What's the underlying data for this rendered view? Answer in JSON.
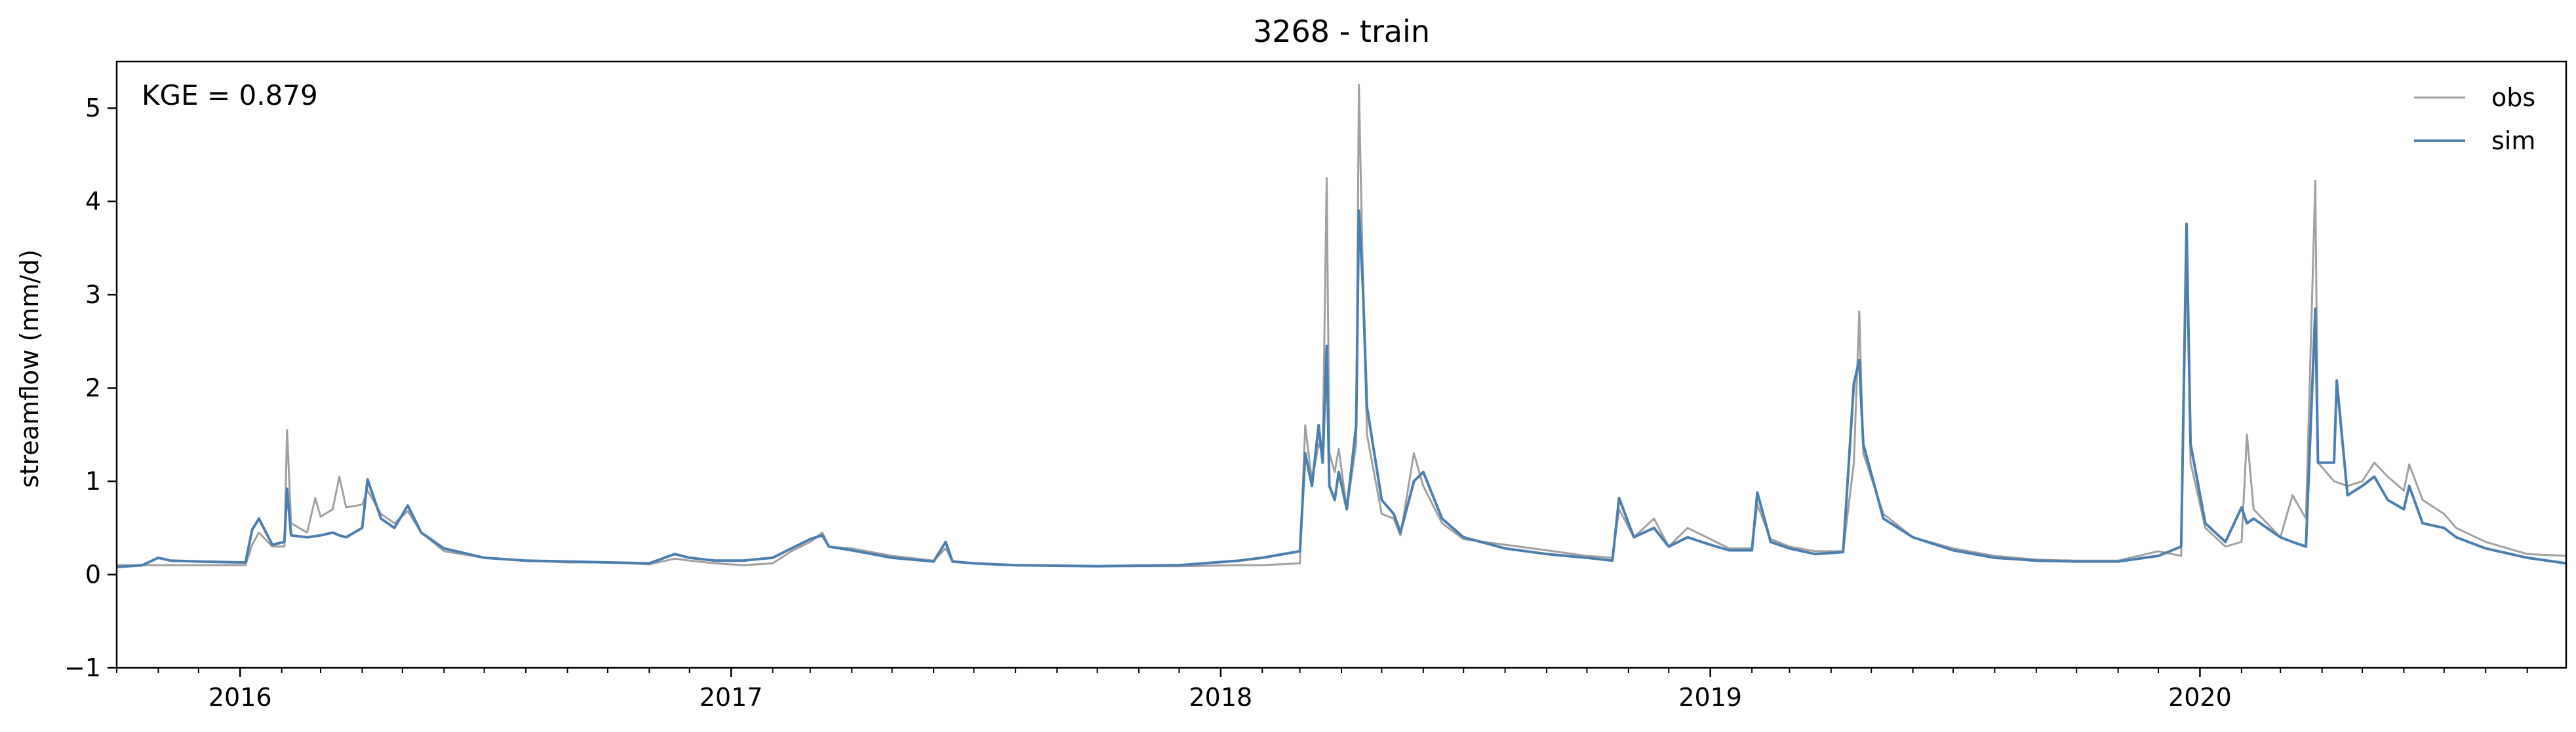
{
  "chart_data": {
    "type": "line",
    "title": "3268 - train",
    "xlabel": "",
    "ylabel": "streamflow (mm/d)",
    "annotation": "KGE = 0.879",
    "xlim": [
      "2015-10-01",
      "2020-09-30"
    ],
    "ylim": [
      -1,
      5.5
    ],
    "x_ticks": [
      "2016",
      "2017",
      "2018",
      "2019",
      "2020"
    ],
    "y_ticks": [
      "−1",
      "0",
      "1",
      "2",
      "3",
      "4",
      "5"
    ],
    "grid": false,
    "legend_position": "top-right",
    "colors": {
      "obs": "#a0a0a0",
      "sim": "#4a7fb0"
    },
    "series": [
      {
        "name": "obs",
        "points": [
          [
            "2015-10-01",
            0.1
          ],
          [
            "2015-11-10",
            0.1
          ],
          [
            "2015-12-01",
            0.1
          ],
          [
            "2015-12-20",
            0.1
          ],
          [
            "2016-01-05",
            0.1
          ],
          [
            "2016-01-10",
            0.32
          ],
          [
            "2016-01-15",
            0.45
          ],
          [
            "2016-01-25",
            0.3
          ],
          [
            "2016-02-03",
            0.3
          ],
          [
            "2016-02-05",
            1.55
          ],
          [
            "2016-02-08",
            0.55
          ],
          [
            "2016-02-20",
            0.45
          ],
          [
            "2016-02-26",
            0.82
          ],
          [
            "2016-03-01",
            0.62
          ],
          [
            "2016-03-10",
            0.7
          ],
          [
            "2016-03-15",
            1.05
          ],
          [
            "2016-03-20",
            0.72
          ],
          [
            "2016-04-01",
            0.75
          ],
          [
            "2016-04-05",
            0.9
          ],
          [
            "2016-04-15",
            0.65
          ],
          [
            "2016-04-25",
            0.55
          ],
          [
            "2016-05-05",
            0.68
          ],
          [
            "2016-05-15",
            0.45
          ],
          [
            "2016-06-01",
            0.25
          ],
          [
            "2016-07-01",
            0.18
          ],
          [
            "2016-08-01",
            0.15
          ],
          [
            "2016-09-01",
            0.13
          ],
          [
            "2016-10-01",
            0.13
          ],
          [
            "2016-11-01",
            0.11
          ],
          [
            "2016-11-20",
            0.17
          ],
          [
            "2016-12-01",
            0.15
          ],
          [
            "2016-12-20",
            0.12
          ],
          [
            "2017-01-10",
            0.1
          ],
          [
            "2017-02-01",
            0.12
          ],
          [
            "2017-02-15",
            0.25
          ],
          [
            "2017-03-01",
            0.35
          ],
          [
            "2017-03-10",
            0.45
          ],
          [
            "2017-03-15",
            0.3
          ],
          [
            "2017-04-01",
            0.28
          ],
          [
            "2017-05-01",
            0.2
          ],
          [
            "2017-06-01",
            0.15
          ],
          [
            "2017-06-10",
            0.28
          ],
          [
            "2017-06-15",
            0.14
          ],
          [
            "2017-07-01",
            0.12
          ],
          [
            "2017-08-01",
            0.1
          ],
          [
            "2017-10-01",
            0.09
          ],
          [
            "2017-12-01",
            0.09
          ],
          [
            "2018-01-15",
            0.1
          ],
          [
            "2018-02-01",
            0.1
          ],
          [
            "2018-03-01",
            0.12
          ],
          [
            "2018-03-05",
            1.6
          ],
          [
            "2018-03-10",
            1.0
          ],
          [
            "2018-03-15",
            1.4
          ],
          [
            "2018-03-18",
            1.3
          ],
          [
            "2018-03-21",
            4.25
          ],
          [
            "2018-03-23",
            1.3
          ],
          [
            "2018-03-27",
            1.1
          ],
          [
            "2018-03-30",
            1.35
          ],
          [
            "2018-04-05",
            0.7
          ],
          [
            "2018-04-12",
            1.4
          ],
          [
            "2018-04-14",
            5.25
          ],
          [
            "2018-04-17",
            3.2
          ],
          [
            "2018-04-20",
            1.5
          ],
          [
            "2018-05-01",
            0.65
          ],
          [
            "2018-05-10",
            0.6
          ],
          [
            "2018-05-15",
            0.42
          ],
          [
            "2018-05-25",
            1.3
          ],
          [
            "2018-06-01",
            0.95
          ],
          [
            "2018-06-15",
            0.55
          ],
          [
            "2018-07-01",
            0.38
          ],
          [
            "2018-08-01",
            0.32
          ],
          [
            "2018-09-01",
            0.26
          ],
          [
            "2018-10-01",
            0.2
          ],
          [
            "2018-10-20",
            0.18
          ],
          [
            "2018-10-25",
            0.7
          ],
          [
            "2018-11-05",
            0.4
          ],
          [
            "2018-11-20",
            0.6
          ],
          [
            "2018-12-01",
            0.3
          ],
          [
            "2018-12-15",
            0.5
          ],
          [
            "2019-01-01",
            0.38
          ],
          [
            "2019-01-15",
            0.28
          ],
          [
            "2019-02-01",
            0.28
          ],
          [
            "2019-02-05",
            0.75
          ],
          [
            "2019-02-15",
            0.38
          ],
          [
            "2019-03-01",
            0.3
          ],
          [
            "2019-03-20",
            0.25
          ],
          [
            "2019-04-10",
            0.25
          ],
          [
            "2019-04-18",
            1.2
          ],
          [
            "2019-04-22",
            2.82
          ],
          [
            "2019-04-25",
            1.3
          ],
          [
            "2019-05-10",
            0.65
          ],
          [
            "2019-06-01",
            0.4
          ],
          [
            "2019-07-01",
            0.28
          ],
          [
            "2019-08-01",
            0.2
          ],
          [
            "2019-09-01",
            0.16
          ],
          [
            "2019-10-01",
            0.15
          ],
          [
            "2019-11-01",
            0.15
          ],
          [
            "2019-12-01",
            0.25
          ],
          [
            "2019-12-18",
            0.2
          ],
          [
            "2019-12-22",
            3.7
          ],
          [
            "2019-12-25",
            1.2
          ],
          [
            "2020-01-05",
            0.5
          ],
          [
            "2020-01-20",
            0.3
          ],
          [
            "2020-02-01",
            0.35
          ],
          [
            "2020-02-05",
            1.5
          ],
          [
            "2020-02-10",
            0.7
          ],
          [
            "2020-03-01",
            0.4
          ],
          [
            "2020-03-10",
            0.85
          ],
          [
            "2020-03-20",
            0.6
          ],
          [
            "2020-03-27",
            4.22
          ],
          [
            "2020-03-29",
            1.2
          ],
          [
            "2020-04-10",
            1.0
          ],
          [
            "2020-04-20",
            0.95
          ],
          [
            "2020-05-01",
            1.0
          ],
          [
            "2020-05-10",
            1.2
          ],
          [
            "2020-05-20",
            1.05
          ],
          [
            "2020-06-01",
            0.9
          ],
          [
            "2020-06-05",
            1.18
          ],
          [
            "2020-06-15",
            0.8
          ],
          [
            "2020-07-01",
            0.65
          ],
          [
            "2020-07-10",
            0.5
          ],
          [
            "2020-08-01",
            0.35
          ],
          [
            "2020-09-01",
            0.22
          ],
          [
            "2020-09-30",
            0.2
          ]
        ]
      },
      {
        "name": "sim",
        "points": [
          [
            "2015-10-01",
            0.08
          ],
          [
            "2015-10-20",
            0.1
          ],
          [
            "2015-11-01",
            0.18
          ],
          [
            "2015-11-10",
            0.15
          ],
          [
            "2015-12-01",
            0.14
          ],
          [
            "2016-01-01",
            0.13
          ],
          [
            "2016-01-05",
            0.13
          ],
          [
            "2016-01-10",
            0.48
          ],
          [
            "2016-01-15",
            0.6
          ],
          [
            "2016-01-25",
            0.32
          ],
          [
            "2016-02-03",
            0.35
          ],
          [
            "2016-02-05",
            0.92
          ],
          [
            "2016-02-08",
            0.42
          ],
          [
            "2016-02-20",
            0.4
          ],
          [
            "2016-03-01",
            0.42
          ],
          [
            "2016-03-10",
            0.45
          ],
          [
            "2016-03-15",
            0.42
          ],
          [
            "2016-03-20",
            0.4
          ],
          [
            "2016-04-01",
            0.5
          ],
          [
            "2016-04-05",
            1.02
          ],
          [
            "2016-04-15",
            0.6
          ],
          [
            "2016-04-25",
            0.5
          ],
          [
            "2016-05-05",
            0.74
          ],
          [
            "2016-05-15",
            0.45
          ],
          [
            "2016-06-01",
            0.28
          ],
          [
            "2016-07-01",
            0.18
          ],
          [
            "2016-08-01",
            0.15
          ],
          [
            "2016-09-01",
            0.14
          ],
          [
            "2016-10-01",
            0.13
          ],
          [
            "2016-11-01",
            0.12
          ],
          [
            "2016-11-20",
            0.22
          ],
          [
            "2016-12-01",
            0.18
          ],
          [
            "2016-12-20",
            0.15
          ],
          [
            "2017-01-10",
            0.15
          ],
          [
            "2017-02-01",
            0.18
          ],
          [
            "2017-02-15",
            0.28
          ],
          [
            "2017-03-01",
            0.38
          ],
          [
            "2017-03-10",
            0.42
          ],
          [
            "2017-03-15",
            0.3
          ],
          [
            "2017-04-01",
            0.26
          ],
          [
            "2017-05-01",
            0.18
          ],
          [
            "2017-06-01",
            0.14
          ],
          [
            "2017-06-10",
            0.35
          ],
          [
            "2017-06-15",
            0.14
          ],
          [
            "2017-07-01",
            0.12
          ],
          [
            "2017-08-01",
            0.1
          ],
          [
            "2017-10-01",
            0.09
          ],
          [
            "2017-12-01",
            0.1
          ],
          [
            "2018-01-15",
            0.15
          ],
          [
            "2018-02-01",
            0.18
          ],
          [
            "2018-03-01",
            0.25
          ],
          [
            "2018-03-05",
            1.3
          ],
          [
            "2018-03-10",
            0.95
          ],
          [
            "2018-03-15",
            1.6
          ],
          [
            "2018-03-18",
            1.2
          ],
          [
            "2018-03-21",
            2.45
          ],
          [
            "2018-03-23",
            0.95
          ],
          [
            "2018-03-27",
            0.8
          ],
          [
            "2018-03-30",
            1.1
          ],
          [
            "2018-04-05",
            0.7
          ],
          [
            "2018-04-12",
            1.6
          ],
          [
            "2018-04-14",
            3.9
          ],
          [
            "2018-04-17",
            3.1
          ],
          [
            "2018-04-20",
            1.8
          ],
          [
            "2018-05-01",
            0.8
          ],
          [
            "2018-05-10",
            0.65
          ],
          [
            "2018-05-15",
            0.45
          ],
          [
            "2018-05-25",
            1.0
          ],
          [
            "2018-06-01",
            1.1
          ],
          [
            "2018-06-15",
            0.6
          ],
          [
            "2018-07-01",
            0.4
          ],
          [
            "2018-08-01",
            0.28
          ],
          [
            "2018-09-01",
            0.22
          ],
          [
            "2018-10-01",
            0.18
          ],
          [
            "2018-10-20",
            0.15
          ],
          [
            "2018-10-25",
            0.82
          ],
          [
            "2018-11-05",
            0.4
          ],
          [
            "2018-11-20",
            0.5
          ],
          [
            "2018-12-01",
            0.3
          ],
          [
            "2018-12-15",
            0.4
          ],
          [
            "2019-01-01",
            0.32
          ],
          [
            "2019-01-15",
            0.26
          ],
          [
            "2019-02-01",
            0.26
          ],
          [
            "2019-02-05",
            0.88
          ],
          [
            "2019-02-15",
            0.35
          ],
          [
            "2019-03-01",
            0.28
          ],
          [
            "2019-03-20",
            0.22
          ],
          [
            "2019-04-10",
            0.24
          ],
          [
            "2019-04-18",
            2.05
          ],
          [
            "2019-04-22",
            2.3
          ],
          [
            "2019-04-25",
            1.4
          ],
          [
            "2019-05-10",
            0.6
          ],
          [
            "2019-06-01",
            0.4
          ],
          [
            "2019-07-01",
            0.26
          ],
          [
            "2019-08-01",
            0.18
          ],
          [
            "2019-09-01",
            0.15
          ],
          [
            "2019-10-01",
            0.14
          ],
          [
            "2019-11-01",
            0.14
          ],
          [
            "2019-12-01",
            0.2
          ],
          [
            "2019-12-18",
            0.3
          ],
          [
            "2019-12-22",
            3.76
          ],
          [
            "2019-12-25",
            1.4
          ],
          [
            "2020-01-05",
            0.55
          ],
          [
            "2020-01-20",
            0.35
          ],
          [
            "2020-02-01",
            0.72
          ],
          [
            "2020-02-05",
            0.55
          ],
          [
            "2020-02-10",
            0.6
          ],
          [
            "2020-03-01",
            0.4
          ],
          [
            "2020-03-10",
            0.35
          ],
          [
            "2020-03-20",
            0.3
          ],
          [
            "2020-03-27",
            2.85
          ],
          [
            "2020-03-29",
            1.2
          ],
          [
            "2020-04-10",
            1.2
          ],
          [
            "2020-04-12",
            2.08
          ],
          [
            "2020-04-20",
            0.85
          ],
          [
            "2020-05-01",
            0.95
          ],
          [
            "2020-05-10",
            1.05
          ],
          [
            "2020-05-20",
            0.8
          ],
          [
            "2020-06-01",
            0.7
          ],
          [
            "2020-06-05",
            0.95
          ],
          [
            "2020-06-15",
            0.55
          ],
          [
            "2020-07-01",
            0.5
          ],
          [
            "2020-07-10",
            0.4
          ],
          [
            "2020-08-01",
            0.28
          ],
          [
            "2020-09-01",
            0.18
          ],
          [
            "2020-09-30",
            0.12
          ]
        ]
      }
    ]
  }
}
